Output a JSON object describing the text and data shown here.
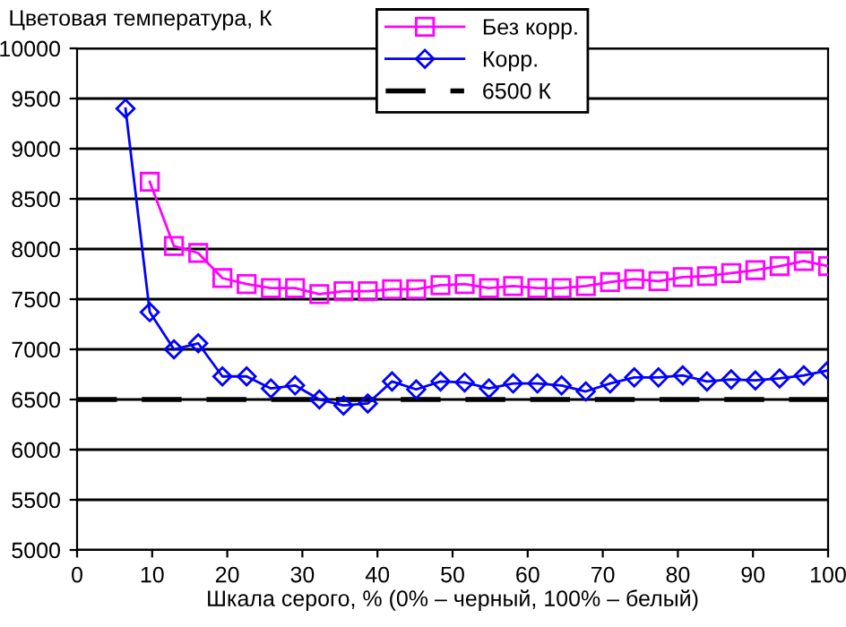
{
  "chart_data": {
    "type": "line",
    "ylabel": "Цветовая температура, К",
    "xlabel": "Шкала серого, % (0% – черный, 100% – белый)",
    "series": [
      {
        "name": "Без корр.",
        "color": "#ff00ff",
        "marker": "square",
        "x": [
          9.68,
          12.9,
          16.13,
          19.35,
          22.58,
          25.81,
          29.03,
          32.26,
          35.48,
          38.71,
          41.94,
          45.16,
          48.39,
          51.61,
          54.84,
          58.06,
          61.29,
          64.52,
          67.74,
          70.97,
          74.19,
          77.42,
          80.65,
          83.87,
          87.1,
          90.32,
          93.55,
          96.77,
          100
        ],
        "values": [
          8670,
          8030,
          7960,
          7710,
          7650,
          7610,
          7610,
          7550,
          7580,
          7580,
          7600,
          7600,
          7640,
          7650,
          7610,
          7630,
          7610,
          7610,
          7630,
          7670,
          7700,
          7680,
          7720,
          7730,
          7760,
          7790,
          7830,
          7880,
          7830
        ]
      },
      {
        "name": "Корр.",
        "color": "#0000ff",
        "marker": "diamond",
        "x": [
          6.45,
          9.68,
          12.9,
          16.13,
          19.35,
          22.58,
          25.81,
          29.03,
          32.26,
          35.48,
          38.71,
          41.94,
          45.16,
          48.39,
          51.61,
          54.84,
          58.06,
          61.29,
          64.52,
          67.74,
          70.97,
          74.19,
          77.42,
          80.65,
          83.87,
          87.1,
          90.32,
          93.55,
          96.77,
          100
        ],
        "values": [
          9400,
          7370,
          7000,
          7060,
          6730,
          6730,
          6610,
          6640,
          6500,
          6440,
          6460,
          6680,
          6600,
          6680,
          6670,
          6610,
          6660,
          6660,
          6640,
          6580,
          6660,
          6720,
          6720,
          6740,
          6680,
          6700,
          6690,
          6710,
          6740,
          6790
        ]
      }
    ],
    "ref_lines": [
      {
        "axis": "y",
        "value": 6500,
        "label": "6500 К",
        "color": "#000000",
        "line_style": "dashed"
      }
    ],
    "xlim": [
      0,
      100
    ],
    "xticks": [
      0,
      10,
      20,
      30,
      40,
      50,
      60,
      70,
      80,
      90,
      100
    ],
    "ylim": [
      5000,
      10000
    ],
    "yticks": [
      5000,
      5500,
      6000,
      6500,
      7000,
      7500,
      8000,
      8500,
      9000,
      9500,
      10000
    ],
    "grid": "y",
    "legend": "top right"
  }
}
